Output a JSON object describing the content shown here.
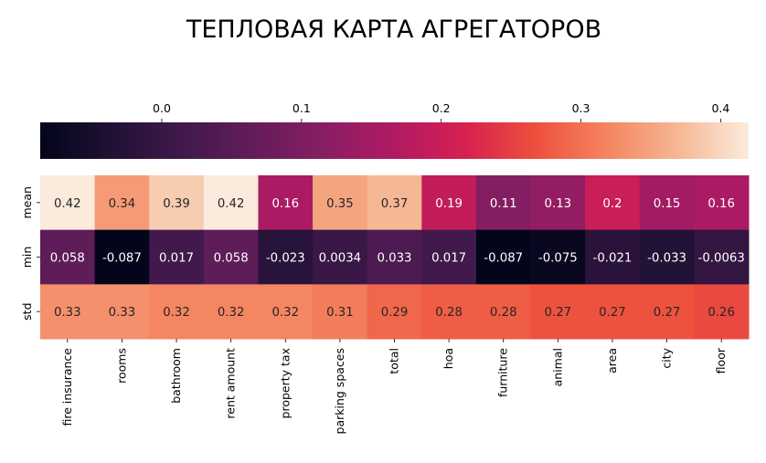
{
  "chart_data": {
    "type": "heatmap",
    "title": "ТЕПЛОВАЯ КАРТА АГРЕГАТОРОВ",
    "colormap": "rocket",
    "rows": [
      "mean",
      "min",
      "std"
    ],
    "columns": [
      "fire insurance",
      "rooms",
      "bathroom",
      "rent amount",
      "property tax",
      "parking spaces",
      "total",
      "hoa",
      "furniture",
      "animal",
      "area",
      "city",
      "floor"
    ],
    "values": [
      [
        0.42,
        0.34,
        0.39,
        0.42,
        0.16,
        0.35,
        0.37,
        0.19,
        0.11,
        0.13,
        0.2,
        0.15,
        0.16
      ],
      [
        0.058,
        -0.087,
        0.017,
        0.058,
        -0.023,
        0.0034,
        0.033,
        0.017,
        -0.087,
        -0.075,
        -0.021,
        -0.033,
        -0.0063
      ],
      [
        0.33,
        0.33,
        0.32,
        0.32,
        0.32,
        0.31,
        0.29,
        0.28,
        0.28,
        0.27,
        0.27,
        0.27,
        0.26
      ]
    ],
    "value_labels": [
      [
        "0.42",
        "0.34",
        "0.39",
        "0.42",
        "0.16",
        "0.35",
        "0.37",
        "0.19",
        "0.11",
        "0.13",
        "0.2",
        "0.15",
        "0.16"
      ],
      [
        "0.058",
        "-0.087",
        "0.017",
        "0.058",
        "-0.023",
        "0.0034",
        "0.033",
        "0.017",
        "-0.087",
        "-0.075",
        "-0.021",
        "-0.033",
        "-0.0063"
      ],
      [
        "0.33",
        "0.33",
        "0.32",
        "0.32",
        "0.32",
        "0.31",
        "0.29",
        "0.28",
        "0.28",
        "0.27",
        "0.27",
        "0.27",
        "0.26"
      ]
    ],
    "colorbar": {
      "position": "top",
      "ticks": [
        0.0,
        0.1,
        0.2,
        0.3,
        0.4
      ],
      "tick_labels": [
        "0.0",
        "0.1",
        "0.2",
        "0.3",
        "0.4"
      ],
      "range": [
        -0.087,
        0.42
      ]
    }
  }
}
